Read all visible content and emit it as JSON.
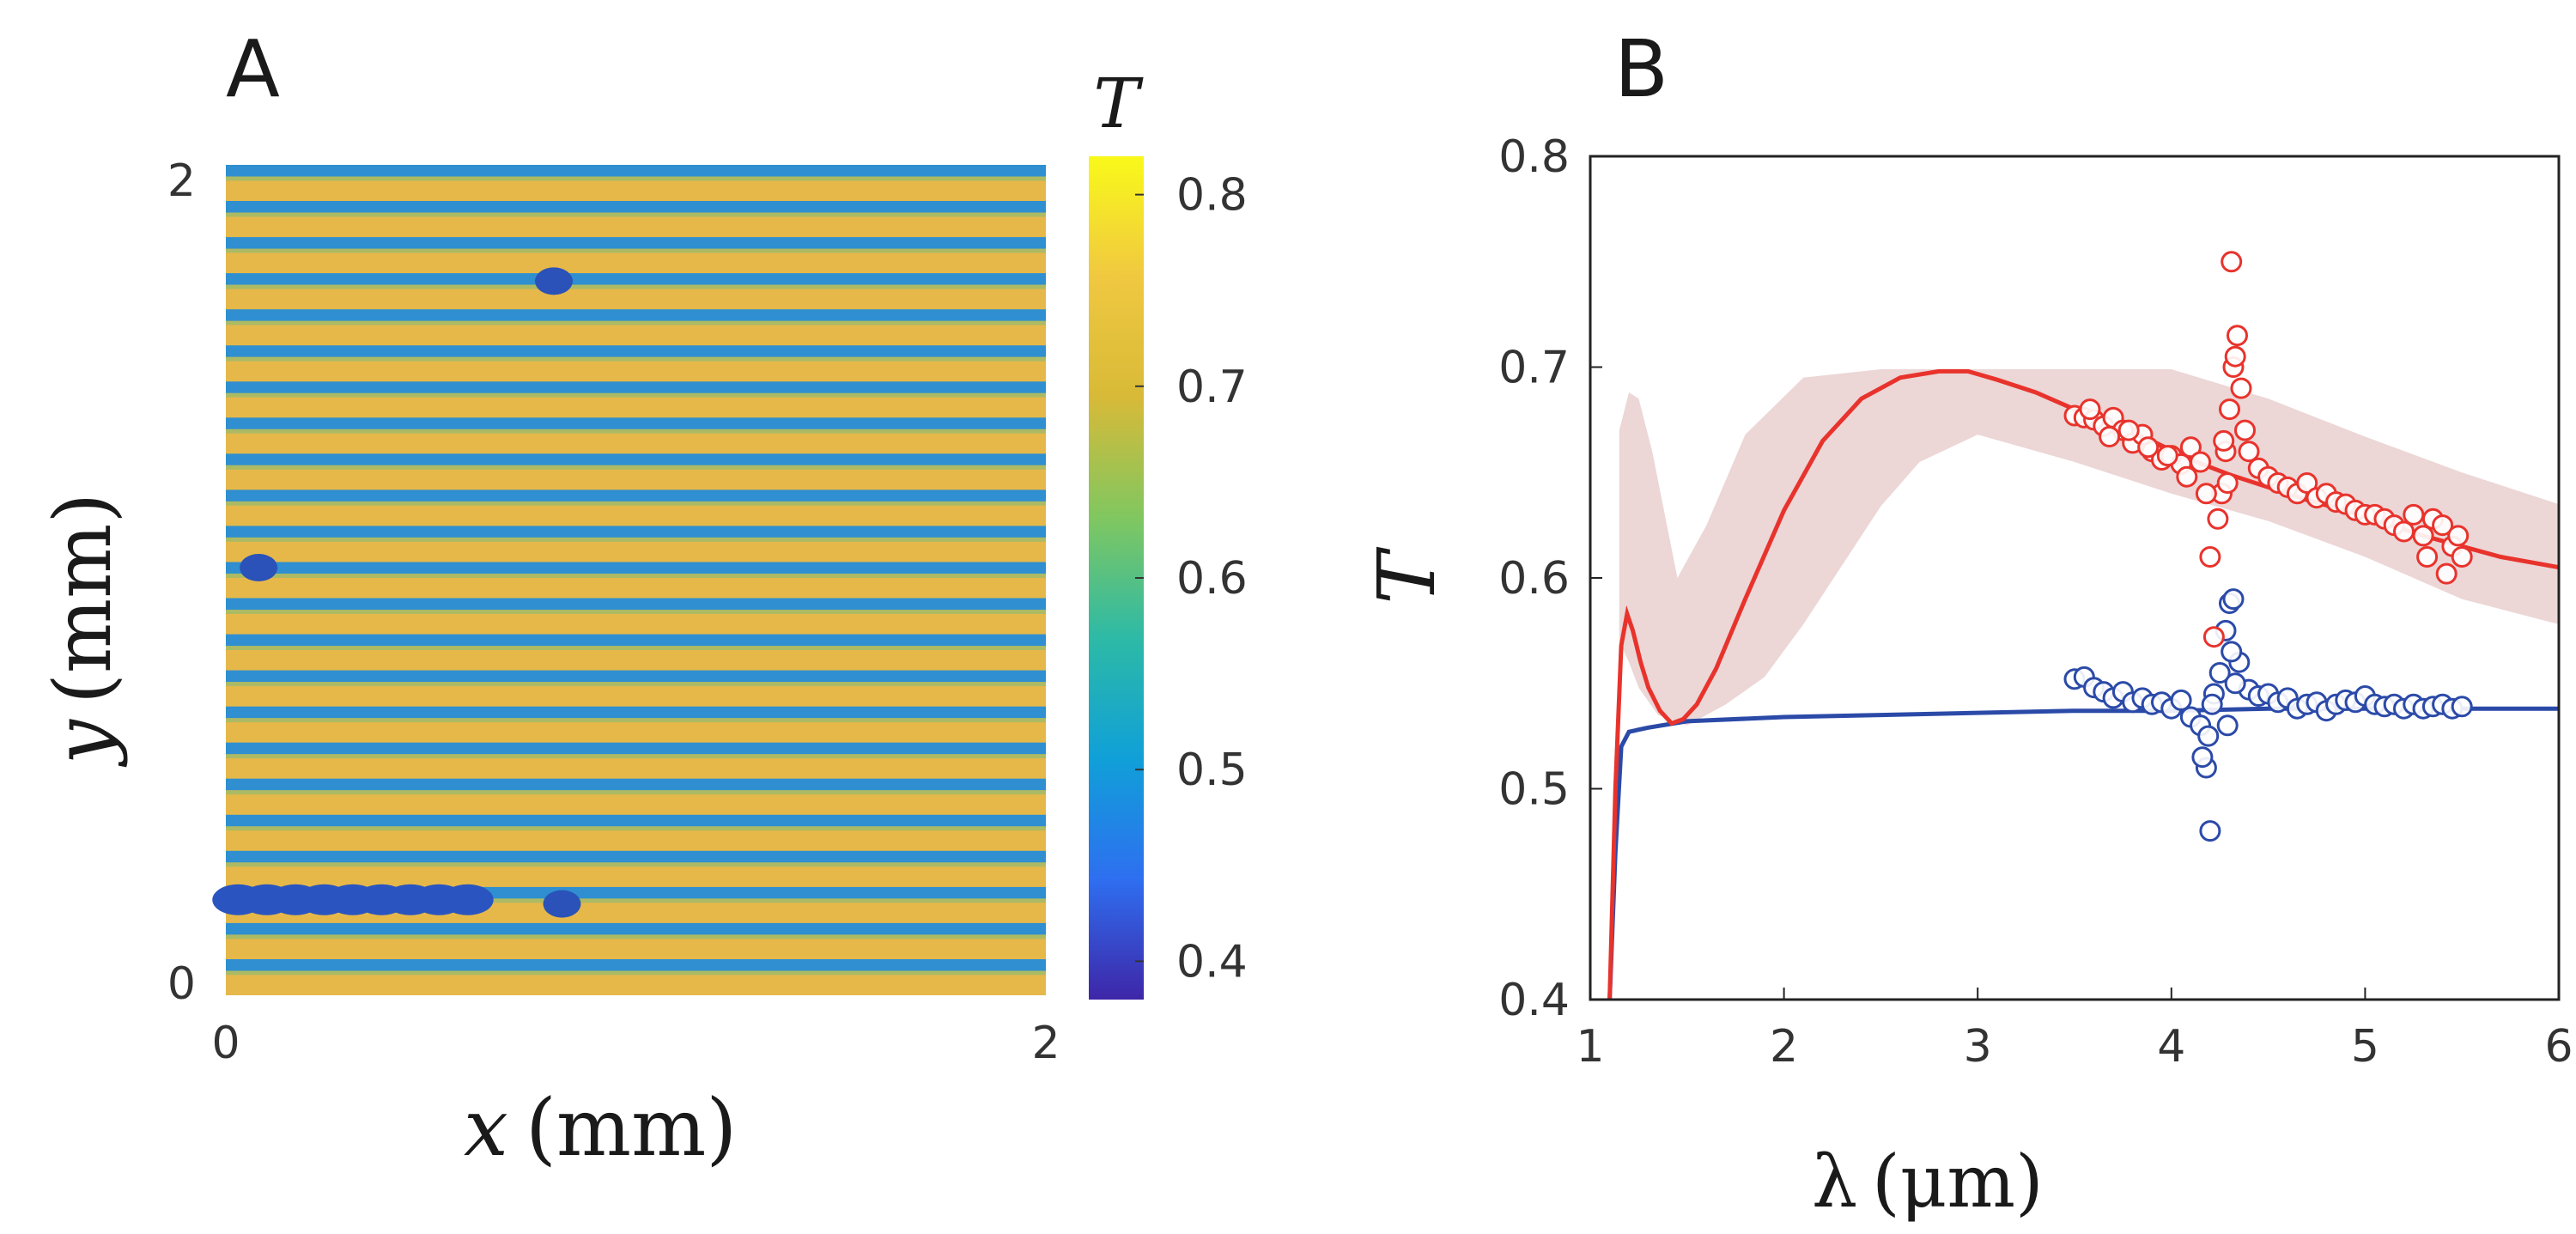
{
  "chart_data": [
    {
      "panel": "A",
      "type": "heatmap",
      "xlabel_var": "x",
      "xlabel_unit": "(mm)",
      "ylabel_var": "y",
      "ylabel_unit": "(mm)",
      "xlim": [
        0,
        2
      ],
      "ylim": [
        0,
        2
      ],
      "x_ticks": [
        "0",
        "2"
      ],
      "y_ticks": [
        "0",
        "2"
      ],
      "stripe_count": 23,
      "stripe_value": 0.45,
      "background_value": 0.76,
      "defects": [
        {
          "x": 0.8,
          "y": 1.72,
          "value": 0.4
        },
        {
          "x": 0.08,
          "y": 1.03,
          "value": 0.45
        },
        {
          "x": 0.58,
          "y": 0.23,
          "value": 0.42
        },
        {
          "x": 0.82,
          "y": 0.22,
          "value": 0.42
        }
      ],
      "colorbar": {
        "title": "T",
        "range": [
          0.38,
          0.82
        ],
        "ticks": [
          "0.4",
          "0.5",
          "0.6",
          "0.7",
          "0.8"
        ],
        "tick_values": [
          0.4,
          0.5,
          0.6,
          0.7,
          0.8
        ],
        "colormap": [
          "#3e26a8",
          "#2e6ff0",
          "#10a0d8",
          "#2dbaa6",
          "#80c760",
          "#d8ba38",
          "#f0c840",
          "#f9f91a"
        ]
      }
    },
    {
      "panel": "B",
      "type": "line",
      "ylabel": "T",
      "xlabel_var": "λ",
      "xlabel_unit": "(μm)",
      "xlim": [
        1,
        6
      ],
      "ylim": [
        0.4,
        0.8
      ],
      "x_ticks": [
        "1",
        "2",
        "3",
        "4",
        "5",
        "6"
      ],
      "x_tick_values": [
        1,
        2,
        3,
        4,
        5,
        6
      ],
      "y_ticks": [
        "0.4",
        "0.5",
        "0.6",
        "0.7",
        "0.8"
      ],
      "y_tick_values": [
        0.4,
        0.5,
        0.6,
        0.7,
        0.8
      ],
      "colors": {
        "red": "#e8332c",
        "blue": "#2b4aa8",
        "band": "#ecd6d6"
      },
      "series": [
        {
          "name": "red-model",
          "color": "#e8332c",
          "x": [
            1.1,
            1.13,
            1.16,
            1.19,
            1.22,
            1.26,
            1.3,
            1.36,
            1.42,
            1.48,
            1.55,
            1.65,
            1.8,
            2.0,
            2.2,
            2.4,
            2.6,
            2.8,
            2.95,
            3.1,
            3.3,
            3.5,
            3.7,
            3.9,
            4.1,
            4.3,
            4.5,
            4.7,
            4.9,
            5.1,
            5.3,
            5.5,
            5.7,
            6.0
          ],
          "y": [
            0.4,
            0.5,
            0.568,
            0.583,
            0.575,
            0.56,
            0.548,
            0.537,
            0.531,
            0.533,
            0.54,
            0.557,
            0.59,
            0.632,
            0.665,
            0.685,
            0.695,
            0.698,
            0.698,
            0.694,
            0.688,
            0.68,
            0.672,
            0.665,
            0.656,
            0.649,
            0.643,
            0.637,
            0.632,
            0.626,
            0.62,
            0.615,
            0.61,
            0.605
          ]
        },
        {
          "name": "blue-model",
          "color": "#2b4aa8",
          "x": [
            1.1,
            1.13,
            1.16,
            1.2,
            1.3,
            1.5,
            2.0,
            2.5,
            3.0,
            3.5,
            4.0,
            4.5,
            5.0,
            5.5,
            6.0
          ],
          "y": [
            0.4,
            0.47,
            0.52,
            0.527,
            0.529,
            0.532,
            0.534,
            0.535,
            0.536,
            0.537,
            0.537,
            0.538,
            0.538,
            0.538,
            0.538
          ]
        },
        {
          "name": "red-band",
          "color": "#ecd6d6",
          "x_upper": [
            1.15,
            1.2,
            1.25,
            1.32,
            1.45,
            1.6,
            1.8,
            2.1,
            2.5,
            3.0,
            3.5,
            4.0,
            4.5,
            5.0,
            5.5,
            6.0
          ],
          "y_upper": [
            0.67,
            0.688,
            0.685,
            0.66,
            0.6,
            0.625,
            0.668,
            0.695,
            0.699,
            0.699,
            0.699,
            0.699,
            0.685,
            0.667,
            0.65,
            0.635
          ],
          "x_lower": [
            6.0,
            5.5,
            5.0,
            4.5,
            4.0,
            3.5,
            3.0,
            2.7,
            2.5,
            2.3,
            2.1,
            1.9,
            1.7,
            1.5,
            1.35,
            1.25,
            1.2,
            1.15
          ],
          "y_lower": [
            0.578,
            0.59,
            0.61,
            0.627,
            0.64,
            0.655,
            0.668,
            0.655,
            0.634,
            0.606,
            0.578,
            0.553,
            0.54,
            0.53,
            0.535,
            0.548,
            0.56,
            0.57
          ]
        },
        {
          "name": "red-measured",
          "color": "#e8332c",
          "marker": "circle",
          "x": [
            3.5,
            3.55,
            3.6,
            3.65,
            3.7,
            3.75,
            3.8,
            3.85,
            3.9,
            3.95,
            4.0,
            4.05,
            4.1,
            4.15,
            4.2,
            4.22,
            4.24,
            4.26,
            4.28,
            4.3,
            4.32,
            4.34,
            4.36,
            4.38,
            4.4,
            4.45,
            4.5,
            4.55,
            4.6,
            4.65,
            4.7,
            4.75,
            4.8,
            4.85,
            4.9,
            4.95,
            5.0,
            5.05,
            5.1,
            5.15,
            5.2,
            5.25,
            5.3,
            5.35,
            5.4,
            5.45,
            5.5,
            3.58,
            3.68,
            3.78,
            3.88,
            3.98,
            4.08,
            4.18,
            5.32,
            5.42,
            5.48,
            4.31,
            4.33,
            4.27,
            4.29
          ],
          "y": [
            0.677,
            0.676,
            0.675,
            0.672,
            0.676,
            0.67,
            0.664,
            0.668,
            0.66,
            0.656,
            0.658,
            0.654,
            0.662,
            0.655,
            0.61,
            0.572,
            0.628,
            0.64,
            0.66,
            0.68,
            0.7,
            0.715,
            0.69,
            0.67,
            0.66,
            0.652,
            0.648,
            0.645,
            0.643,
            0.64,
            0.645,
            0.638,
            0.64,
            0.636,
            0.635,
            0.632,
            0.63,
            0.63,
            0.628,
            0.625,
            0.622,
            0.63,
            0.62,
            0.628,
            0.625,
            0.615,
            0.61,
            0.68,
            0.667,
            0.67,
            0.662,
            0.658,
            0.648,
            0.64,
            0.61,
            0.602,
            0.62,
            0.75,
            0.705,
            0.665,
            0.645
          ]
        },
        {
          "name": "blue-measured",
          "color": "#2b4aa8",
          "marker": "circle",
          "x": [
            3.5,
            3.55,
            3.6,
            3.65,
            3.7,
            3.75,
            3.8,
            3.85,
            3.9,
            3.95,
            4.0,
            4.05,
            4.1,
            4.15,
            4.18,
            4.2,
            4.22,
            4.25,
            4.28,
            4.3,
            4.32,
            4.35,
            4.4,
            4.45,
            4.5,
            4.55,
            4.6,
            4.65,
            4.7,
            4.75,
            4.8,
            4.85,
            4.9,
            4.95,
            5.0,
            5.05,
            5.1,
            5.15,
            5.2,
            5.25,
            5.3,
            5.35,
            5.4,
            5.45,
            5.5,
            4.16,
            4.19,
            4.21,
            4.31,
            4.33,
            4.29
          ],
          "y": [
            0.552,
            0.553,
            0.548,
            0.546,
            0.543,
            0.546,
            0.541,
            0.543,
            0.54,
            0.541,
            0.538,
            0.542,
            0.534,
            0.53,
            0.51,
            0.48,
            0.545,
            0.555,
            0.575,
            0.588,
            0.59,
            0.56,
            0.547,
            0.544,
            0.545,
            0.541,
            0.543,
            0.538,
            0.54,
            0.541,
            0.537,
            0.54,
            0.542,
            0.541,
            0.544,
            0.54,
            0.539,
            0.54,
            0.538,
            0.54,
            0.538,
            0.539,
            0.54,
            0.538,
            0.539,
            0.515,
            0.525,
            0.54,
            0.565,
            0.55,
            0.53
          ]
        }
      ]
    }
  ],
  "panel_labels": {
    "a": "A",
    "b": "B"
  }
}
